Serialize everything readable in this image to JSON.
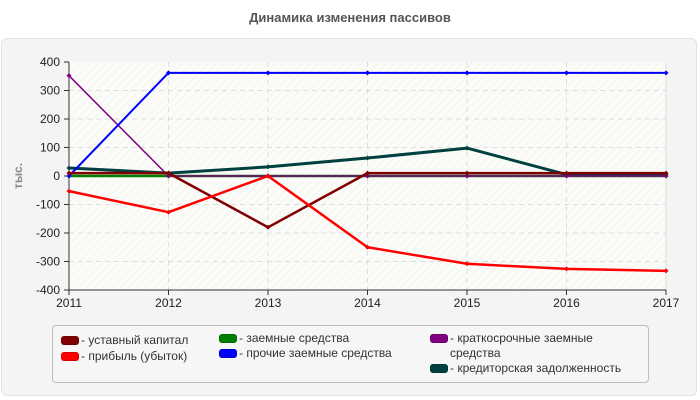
{
  "chart_data": {
    "type": "line",
    "title": "Динамика изменения пассивов",
    "xlabel": "",
    "ylabel": "тыс.",
    "x": [
      "2011",
      "2012",
      "2013",
      "2014",
      "2015",
      "2016",
      "2017"
    ],
    "ylim": [
      -400,
      400
    ],
    "yticks": [
      "400",
      "300",
      "200",
      "100",
      "0",
      "-100",
      "-200",
      "-300",
      "-400"
    ],
    "grid": true,
    "legend_position": "bottom",
    "series": [
      {
        "name": "уставный капитал",
        "color": "#800000",
        "values": [
          10,
          10,
          -180,
          10,
          10,
          10,
          10
        ]
      },
      {
        "name": "прибыль (убыток)",
        "color": "#ff0000",
        "values": [
          -53,
          -127,
          0,
          -250,
          -308,
          -326,
          -333
        ]
      },
      {
        "name": "заемные средства",
        "color": "#008000",
        "values": [
          0,
          0,
          0,
          0,
          0,
          0,
          0
        ]
      },
      {
        "name": "прочие заемные средства",
        "color": "#0000ff",
        "values": [
          0,
          362,
          362,
          362,
          362,
          362,
          362
        ]
      },
      {
        "name": "краткосрочные заемные средства",
        "color": "#800080",
        "values": [
          352,
          0,
          0,
          0,
          0,
          0,
          0
        ]
      },
      {
        "name": "кредиторская задолженность",
        "color": "#004040",
        "values": [
          28,
          10,
          32,
          63,
          98,
          5,
          5
        ]
      }
    ]
  },
  "legend": {
    "items": [
      {
        "label": "- уставный капитал",
        "color": "#800000"
      },
      {
        "label": "- прибыль (убыток)",
        "color": "#ff0000"
      },
      {
        "label": "- заемные средства",
        "color": "#008000"
      },
      {
        "label": "- прочие заемные средства",
        "color": "#0000ff"
      },
      {
        "label": "- краткосрочные заемные средства",
        "color": "#800080"
      },
      {
        "label": "- кредиторская задолженность",
        "color": "#004040"
      }
    ]
  }
}
